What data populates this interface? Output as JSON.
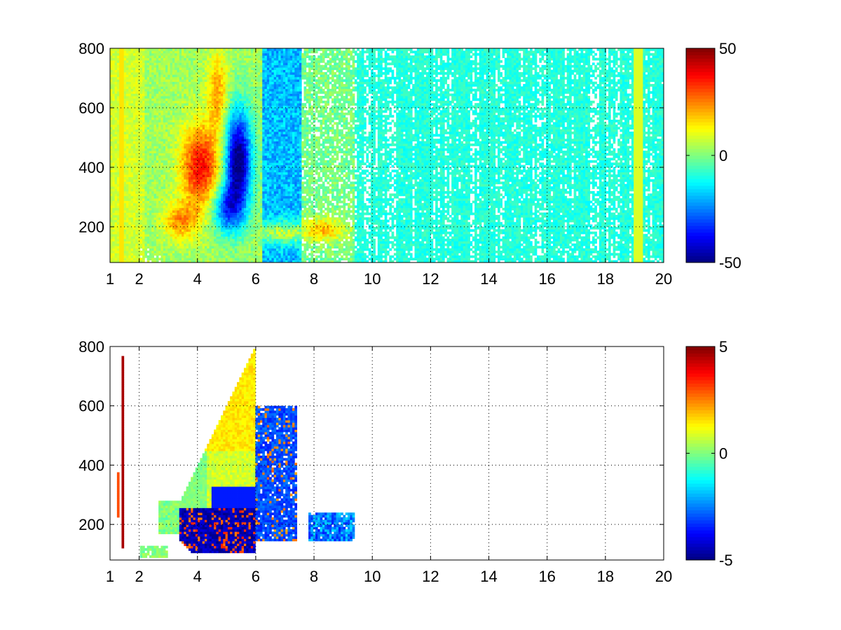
{
  "chart_data": [
    {
      "type": "heatmap",
      "title": "",
      "xlabel": "",
      "ylabel": "",
      "xlim": [
        1,
        20
      ],
      "ylim": [
        80,
        800
      ],
      "grid": true,
      "x_ticks": [
        1,
        2,
        4,
        6,
        8,
        10,
        12,
        14,
        16,
        18,
        20
      ],
      "x_tick_labels": [
        "1",
        "2",
        "4",
        "6",
        "8",
        "10",
        "12",
        "14",
        "16",
        "18",
        "20"
      ],
      "y_ticks": [
        200,
        400,
        600,
        800
      ],
      "y_tick_labels": [
        "200",
        "400",
        "600",
        "800"
      ],
      "colorbar": {
        "colormap": "jet",
        "range": [
          -50,
          50
        ],
        "ticks": [
          -50,
          0,
          50
        ],
        "tick_labels": [
          "-50",
          "0",
          "50"
        ],
        "position": "right"
      },
      "features": [
        {
          "region": "x 3.3-5.0, y 280-520",
          "value": 38
        },
        {
          "region": "x 2.8-4.2, y 180-260",
          "value": 28
        },
        {
          "region": "x 4.2-5.2, y 550-780",
          "value": 25
        },
        {
          "region": "x 4.6-6.2, y 250-600",
          "value": -25
        },
        {
          "region": "x 6.0-7.5, y 300-500",
          "value": -12
        },
        {
          "region": "x 5.5-9.0, y 150-210",
          "value": 22
        },
        {
          "region": "x 1.0-2.2, y 80-800",
          "value": 8
        },
        {
          "region": "x 9.5-20, y 80-800 (sparse)",
          "value": 3
        }
      ]
    },
    {
      "type": "heatmap",
      "title": "",
      "xlabel": "",
      "ylabel": "",
      "xlim": [
        1,
        20
      ],
      "ylim": [
        80,
        800
      ],
      "grid": true,
      "x_ticks": [
        1,
        2,
        4,
        6,
        8,
        10,
        12,
        14,
        16,
        18,
        20
      ],
      "x_tick_labels": [
        "1",
        "2",
        "4",
        "6",
        "8",
        "10",
        "12",
        "14",
        "16",
        "18",
        "20"
      ],
      "y_ticks": [
        200,
        400,
        600,
        800
      ],
      "y_tick_labels": [
        "200",
        "400",
        "600",
        "800"
      ],
      "colorbar": {
        "colormap": "jet",
        "range": [
          -5,
          5
        ],
        "ticks": [
          -5,
          0,
          5
        ],
        "tick_labels": [
          "-5",
          "0",
          "5"
        ],
        "position": "right"
      },
      "features": [
        {
          "region": "x 4.0-6.0, y 300-780",
          "value": 1.5
        },
        {
          "region": "x 3.4-5.0, y 200-480",
          "value": 0.3
        },
        {
          "region": "x 3.6-5.8, y 120-300",
          "value": -3.5
        },
        {
          "region": "x 4.2-5.8, y 130-260",
          "value": 4
        },
        {
          "region": "x 6.0-7.4, y 150-600",
          "value": -2
        },
        {
          "region": "x 7.8-9.4, y 150-230",
          "value": -1.5
        },
        {
          "region": "x 1.4-1.5, y 120-770",
          "value": 4.5
        }
      ]
    }
  ]
}
